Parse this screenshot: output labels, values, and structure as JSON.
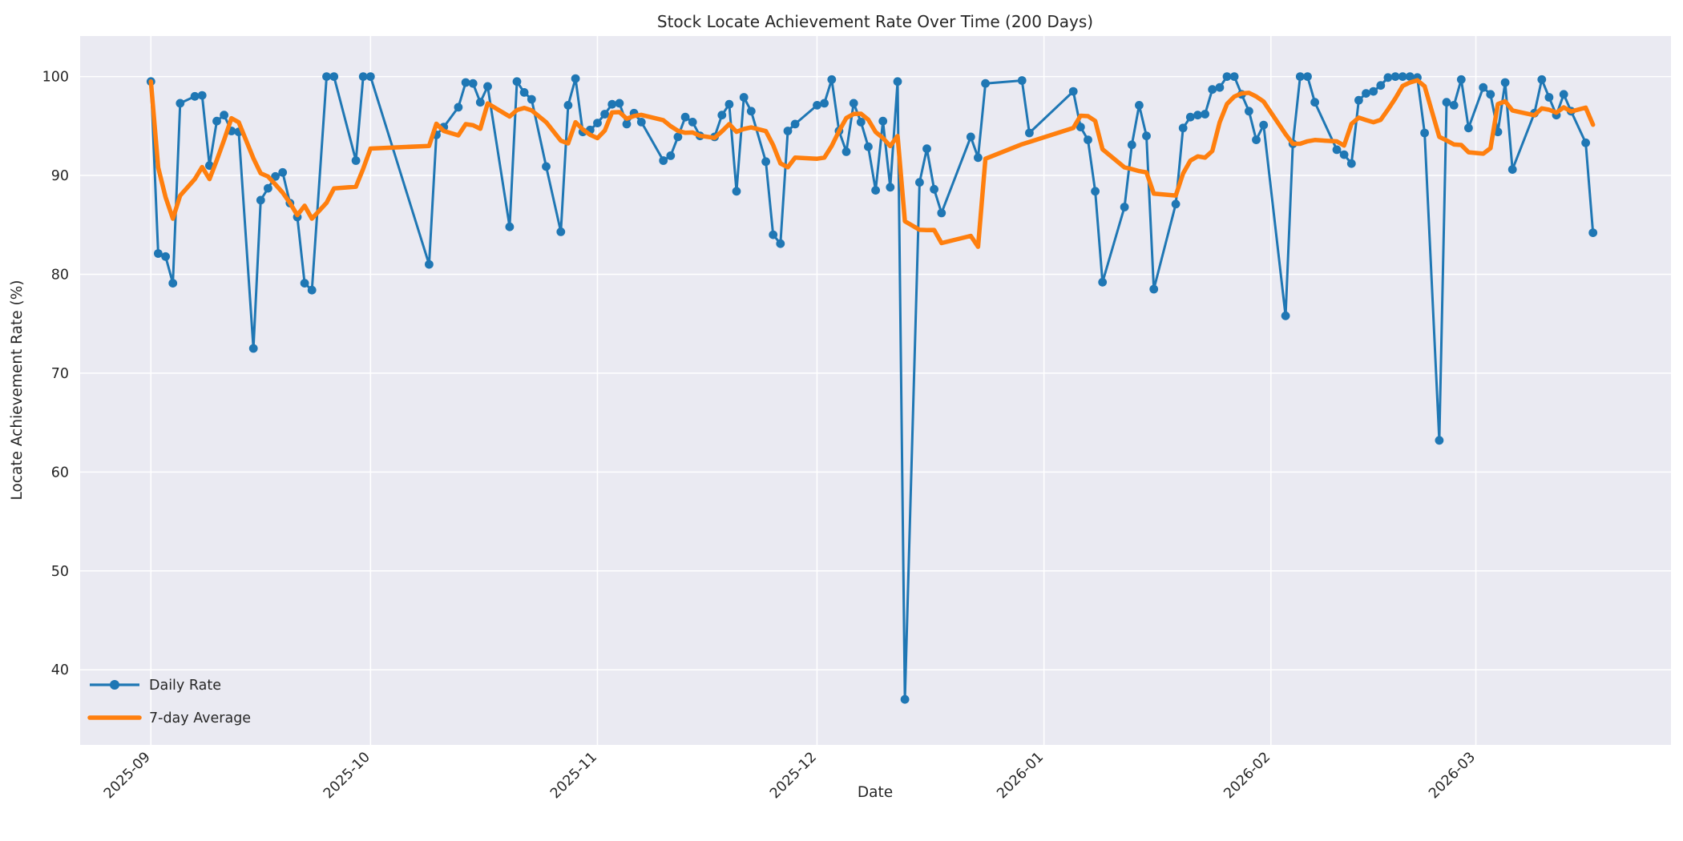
{
  "chart_data": {
    "type": "line",
    "title": "Stock Locate Achievement Rate Over Time (200 Days)",
    "xlabel": "Date",
    "ylabel": "Locate Achievement Rate (%)",
    "x_start_date": "2025-09-01",
    "ylim": [
      32.4,
      104.1
    ],
    "yticks": [
      40,
      50,
      60,
      70,
      80,
      90,
      100
    ],
    "xticks": [
      {
        "label": "2025-09",
        "date": "2025-09-01"
      },
      {
        "label": "2025-10",
        "date": "2025-10-01"
      },
      {
        "label": "2025-11",
        "date": "2025-11-01"
      },
      {
        "label": "2025-12",
        "date": "2025-12-01"
      },
      {
        "label": "2026-01",
        "date": "2026-01-01"
      },
      {
        "label": "2026-02",
        "date": "2026-02-01"
      },
      {
        "label": "2026-03",
        "date": "2026-03-01"
      }
    ],
    "grid": true,
    "legend_position": "lower-left",
    "legend": [
      {
        "label": "Daily Rate",
        "color": "#1f77b4",
        "marker": true
      },
      {
        "label": "7-day Average",
        "color": "#ff7f0e",
        "marker": false
      }
    ],
    "avg_window": 7,
    "series": [
      {
        "name": "Daily Rate",
        "color": "#1f77b4",
        "points": [
          [
            "2025-09-01",
            99.5
          ],
          [
            "2025-09-02",
            82.1
          ],
          [
            "2025-09-03",
            81.8
          ],
          [
            "2025-09-04",
            79.1
          ],
          [
            "2025-09-05",
            97.3
          ],
          [
            "2025-09-07",
            98.0
          ],
          [
            "2025-09-08",
            98.1
          ],
          [
            "2025-09-09",
            91.0
          ],
          [
            "2025-09-10",
            95.5
          ],
          [
            "2025-09-11",
            96.1
          ],
          [
            "2025-09-12",
            94.5
          ],
          [
            "2025-09-13",
            94.4
          ],
          [
            "2025-09-15",
            72.5
          ],
          [
            "2025-09-16",
            87.5
          ],
          [
            "2025-09-17",
            88.7
          ],
          [
            "2025-09-18",
            89.9
          ],
          [
            "2025-09-19",
            90.3
          ],
          [
            "2025-09-20",
            87.2
          ],
          [
            "2025-09-21",
            85.8
          ],
          [
            "2025-09-22",
            79.1
          ],
          [
            "2025-09-23",
            78.4
          ],
          [
            "2025-09-25",
            100.0
          ],
          [
            "2025-09-26",
            100.0
          ],
          [
            "2025-09-29",
            91.5
          ],
          [
            "2025-09-30",
            100.0
          ],
          [
            "2025-10-01",
            100.0
          ],
          [
            "2025-10-09",
            81.0
          ],
          [
            "2025-10-10",
            94.1
          ],
          [
            "2025-10-11",
            94.9
          ],
          [
            "2025-10-13",
            96.9
          ],
          [
            "2025-10-14",
            99.4
          ],
          [
            "2025-10-15",
            99.3
          ],
          [
            "2025-10-16",
            97.4
          ],
          [
            "2025-10-17",
            99.0
          ],
          [
            "2025-10-20",
            84.8
          ],
          [
            "2025-10-21",
            99.5
          ],
          [
            "2025-10-22",
            98.4
          ],
          [
            "2025-10-23",
            97.7
          ],
          [
            "2025-10-25",
            90.9
          ],
          [
            "2025-10-27",
            84.3
          ],
          [
            "2025-10-28",
            97.1
          ],
          [
            "2025-10-29",
            99.8
          ],
          [
            "2025-10-30",
            94.4
          ],
          [
            "2025-10-31",
            94.6
          ],
          [
            "2025-11-01",
            95.3
          ],
          [
            "2025-11-02",
            96.2
          ],
          [
            "2025-11-03",
            97.2
          ],
          [
            "2025-11-04",
            97.3
          ],
          [
            "2025-11-05",
            95.2
          ],
          [
            "2025-11-06",
            96.3
          ],
          [
            "2025-11-07",
            95.4
          ],
          [
            "2025-11-10",
            91.5
          ],
          [
            "2025-11-11",
            92.0
          ],
          [
            "2025-11-12",
            93.9
          ],
          [
            "2025-11-13",
            95.9
          ],
          [
            "2025-11-14",
            95.4
          ],
          [
            "2025-11-15",
            94.0
          ],
          [
            "2025-11-17",
            93.9
          ],
          [
            "2025-11-18",
            96.1
          ],
          [
            "2025-11-19",
            97.2
          ],
          [
            "2025-11-20",
            88.4
          ],
          [
            "2025-11-21",
            97.9
          ],
          [
            "2025-11-22",
            96.5
          ],
          [
            "2025-11-24",
            91.4
          ],
          [
            "2025-11-25",
            84.0
          ],
          [
            "2025-11-26",
            83.1
          ],
          [
            "2025-11-27",
            94.5
          ],
          [
            "2025-11-28",
            95.2
          ],
          [
            "2025-12-01",
            97.1
          ],
          [
            "2025-12-02",
            97.3
          ],
          [
            "2025-12-03",
            99.7
          ],
          [
            "2025-12-04",
            94.5
          ],
          [
            "2025-12-05",
            92.4
          ],
          [
            "2025-12-06",
            97.3
          ],
          [
            "2025-12-07",
            95.4
          ],
          [
            "2025-12-08",
            92.9
          ],
          [
            "2025-12-09",
            88.5
          ],
          [
            "2025-12-10",
            95.5
          ],
          [
            "2025-12-11",
            88.8
          ],
          [
            "2025-12-12",
            99.5
          ],
          [
            "2025-12-13",
            37.0
          ],
          [
            "2025-12-15",
            89.3
          ],
          [
            "2025-12-16",
            92.7
          ],
          [
            "2025-12-17",
            88.6
          ],
          [
            "2025-12-18",
            86.2
          ],
          [
            "2025-12-22",
            93.9
          ],
          [
            "2025-12-23",
            91.8
          ],
          [
            "2025-12-24",
            99.3
          ],
          [
            "2025-12-29",
            99.6
          ],
          [
            "2025-12-30",
            94.3
          ],
          [
            "2026-01-05",
            98.5
          ],
          [
            "2026-01-06",
            94.9
          ],
          [
            "2026-01-07",
            93.6
          ],
          [
            "2026-01-08",
            88.4
          ],
          [
            "2026-01-09",
            79.2
          ],
          [
            "2026-01-12",
            86.8
          ],
          [
            "2026-01-13",
            93.1
          ],
          [
            "2026-01-14",
            97.1
          ],
          [
            "2026-01-15",
            94.0
          ],
          [
            "2026-01-16",
            78.5
          ],
          [
            "2026-01-19",
            87.1
          ],
          [
            "2026-01-20",
            94.8
          ],
          [
            "2026-01-21",
            95.9
          ],
          [
            "2026-01-22",
            96.1
          ],
          [
            "2026-01-23",
            96.2
          ],
          [
            "2026-01-24",
            98.7
          ],
          [
            "2026-01-25",
            98.9
          ],
          [
            "2026-01-26",
            100.0
          ],
          [
            "2026-01-27",
            100.0
          ],
          [
            "2026-01-28",
            98.2
          ],
          [
            "2026-01-29",
            96.5
          ],
          [
            "2026-01-30",
            93.6
          ],
          [
            "2026-01-31",
            95.1
          ],
          [
            "2026-02-03",
            75.8
          ],
          [
            "2026-02-04",
            93.2
          ],
          [
            "2026-02-05",
            100.0
          ],
          [
            "2026-02-06",
            100.0
          ],
          [
            "2026-02-07",
            97.4
          ],
          [
            "2026-02-10",
            92.6
          ],
          [
            "2026-02-11",
            92.1
          ],
          [
            "2026-02-12",
            91.2
          ],
          [
            "2026-02-13",
            97.6
          ],
          [
            "2026-02-14",
            98.3
          ],
          [
            "2026-02-15",
            98.5
          ],
          [
            "2026-02-16",
            99.1
          ],
          [
            "2026-02-17",
            99.9
          ],
          [
            "2026-02-18",
            100.0
          ],
          [
            "2026-02-19",
            100.0
          ],
          [
            "2026-02-20",
            100.0
          ],
          [
            "2026-02-21",
            99.9
          ],
          [
            "2026-02-22",
            94.3
          ],
          [
            "2026-02-24",
            63.2
          ],
          [
            "2026-02-25",
            97.4
          ],
          [
            "2026-02-26",
            97.1
          ],
          [
            "2026-02-27",
            99.7
          ],
          [
            "2026-02-28",
            94.8
          ],
          [
            "2026-03-02",
            98.9
          ],
          [
            "2026-03-03",
            98.2
          ],
          [
            "2026-03-04",
            94.4
          ],
          [
            "2026-03-05",
            99.4
          ],
          [
            "2026-03-06",
            90.6
          ],
          [
            "2026-03-09",
            96.3
          ],
          [
            "2026-03-10",
            99.7
          ],
          [
            "2026-03-11",
            97.9
          ],
          [
            "2026-03-12",
            96.1
          ],
          [
            "2026-03-13",
            98.2
          ],
          [
            "2026-03-14",
            96.5
          ],
          [
            "2026-03-16",
            93.3
          ],
          [
            "2026-03-17",
            84.2
          ]
        ]
      }
    ],
    "colors": {
      "daily": "#1f77b4",
      "average": "#ff7f0e",
      "axes_background": "#eaeaf2",
      "grid": "#ffffff",
      "text": "#262626",
      "figure_background": "#ffffff"
    }
  }
}
